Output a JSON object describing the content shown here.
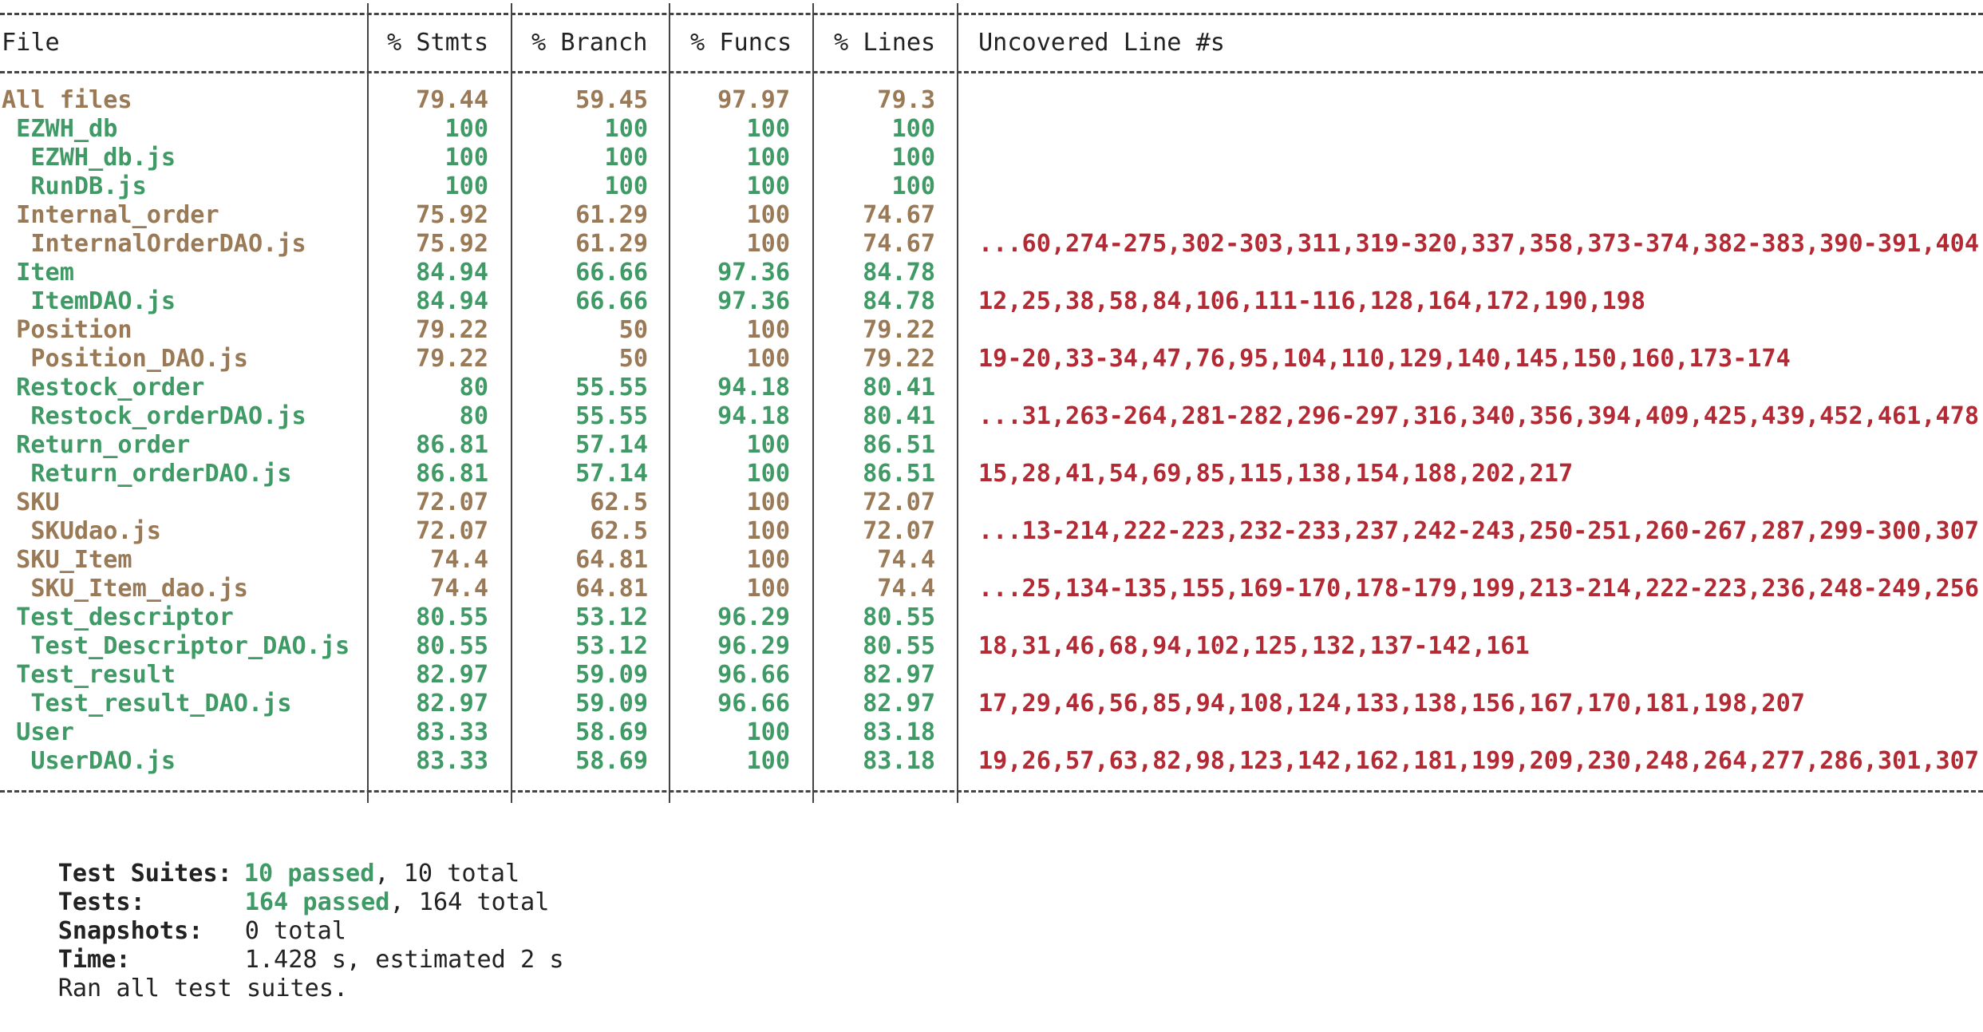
{
  "colors": {
    "ok": "#3f9a66",
    "warn": "#9a7a56",
    "uncovered": "#b32a35",
    "text": "#222222"
  },
  "table": {
    "headers": [
      "File",
      "% Stmts",
      "% Branch",
      "% Funcs",
      "% Lines",
      "Uncovered Line #s"
    ],
    "rows": [
      {
        "file": "All files",
        "stmts": "79.44",
        "branch": "59.45",
        "funcs": "97.97",
        "lines": "79.3",
        "uncovered": "",
        "status": "warn"
      },
      {
        "file": " EZWH_db",
        "stmts": "100",
        "branch": "100",
        "funcs": "100",
        "lines": "100",
        "uncovered": "",
        "status": "ok"
      },
      {
        "file": "  EZWH_db.js",
        "stmts": "100",
        "branch": "100",
        "funcs": "100",
        "lines": "100",
        "uncovered": "",
        "status": "ok"
      },
      {
        "file": "  RunDB.js",
        "stmts": "100",
        "branch": "100",
        "funcs": "100",
        "lines": "100",
        "uncovered": "",
        "status": "ok"
      },
      {
        "file": " Internal_order",
        "stmts": "75.92",
        "branch": "61.29",
        "funcs": "100",
        "lines": "74.67",
        "uncovered": "",
        "status": "warn"
      },
      {
        "file": "  InternalOrderDAO.js",
        "stmts": "75.92",
        "branch": "61.29",
        "funcs": "100",
        "lines": "74.67",
        "uncovered": "...60,274-275,302-303,311,319-320,337,358,373-374,382-383,390-391,404",
        "status": "warn"
      },
      {
        "file": " Item",
        "stmts": "84.94",
        "branch": "66.66",
        "funcs": "97.36",
        "lines": "84.78",
        "uncovered": "",
        "status": "ok"
      },
      {
        "file": "  ItemDAO.js",
        "stmts": "84.94",
        "branch": "66.66",
        "funcs": "97.36",
        "lines": "84.78",
        "uncovered": "12,25,38,58,84,106,111-116,128,164,172,190,198",
        "status": "ok"
      },
      {
        "file": " Position",
        "stmts": "79.22",
        "branch": "50",
        "funcs": "100",
        "lines": "79.22",
        "uncovered": "",
        "status": "warn"
      },
      {
        "file": "  Position_DAO.js",
        "stmts": "79.22",
        "branch": "50",
        "funcs": "100",
        "lines": "79.22",
        "uncovered": "19-20,33-34,47,76,95,104,110,129,140,145,150,160,173-174",
        "status": "warn"
      },
      {
        "file": " Restock_order",
        "stmts": "80",
        "branch": "55.55",
        "funcs": "94.18",
        "lines": "80.41",
        "uncovered": "",
        "status": "ok"
      },
      {
        "file": "  Restock_orderDAO.js",
        "stmts": "80",
        "branch": "55.55",
        "funcs": "94.18",
        "lines": "80.41",
        "uncovered": "...31,263-264,281-282,296-297,316,340,356,394,409,425,439,452,461,478",
        "status": "ok"
      },
      {
        "file": " Return_order",
        "stmts": "86.81",
        "branch": "57.14",
        "funcs": "100",
        "lines": "86.51",
        "uncovered": "",
        "status": "ok"
      },
      {
        "file": "  Return_orderDAO.js",
        "stmts": "86.81",
        "branch": "57.14",
        "funcs": "100",
        "lines": "86.51",
        "uncovered": "15,28,41,54,69,85,115,138,154,188,202,217",
        "status": "ok"
      },
      {
        "file": " SKU",
        "stmts": "72.07",
        "branch": "62.5",
        "funcs": "100",
        "lines": "72.07",
        "uncovered": "",
        "status": "warn"
      },
      {
        "file": "  SKUdao.js",
        "stmts": "72.07",
        "branch": "62.5",
        "funcs": "100",
        "lines": "72.07",
        "uncovered": "...13-214,222-223,232-233,237,242-243,250-251,260-267,287,299-300,307",
        "status": "warn"
      },
      {
        "file": " SKU_Item",
        "stmts": "74.4",
        "branch": "64.81",
        "funcs": "100",
        "lines": "74.4",
        "uncovered": "",
        "status": "warn"
      },
      {
        "file": "  SKU_Item_dao.js",
        "stmts": "74.4",
        "branch": "64.81",
        "funcs": "100",
        "lines": "74.4",
        "uncovered": "...25,134-135,155,169-170,178-179,199,213-214,222-223,236,248-249,256",
        "status": "warn"
      },
      {
        "file": " Test_descriptor",
        "stmts": "80.55",
        "branch": "53.12",
        "funcs": "96.29",
        "lines": "80.55",
        "uncovered": "",
        "status": "ok"
      },
      {
        "file": "  Test_Descriptor_DAO.js",
        "stmts": "80.55",
        "branch": "53.12",
        "funcs": "96.29",
        "lines": "80.55",
        "uncovered": "18,31,46,68,94,102,125,132,137-142,161",
        "status": "ok"
      },
      {
        "file": " Test_result",
        "stmts": "82.97",
        "branch": "59.09",
        "funcs": "96.66",
        "lines": "82.97",
        "uncovered": "",
        "status": "ok"
      },
      {
        "file": "  Test_result_DAO.js",
        "stmts": "82.97",
        "branch": "59.09",
        "funcs": "96.66",
        "lines": "82.97",
        "uncovered": "17,29,46,56,85,94,108,124,133,138,156,167,170,181,198,207",
        "status": "ok"
      },
      {
        "file": " User",
        "stmts": "83.33",
        "branch": "58.69",
        "funcs": "100",
        "lines": "83.18",
        "uncovered": "",
        "status": "ok"
      },
      {
        "file": "  UserDAO.js",
        "stmts": "83.33",
        "branch": "58.69",
        "funcs": "100",
        "lines": "83.18",
        "uncovered": "19,26,57,63,82,98,123,142,162,181,199,209,230,248,264,277,286,301,307",
        "status": "ok"
      }
    ]
  },
  "summary": {
    "suites_label": "Test Suites:",
    "suites_passed": "10 passed",
    "suites_total": ", 10 total",
    "tests_label": "Tests:",
    "tests_passed": "164 passed",
    "tests_total": ", 164 total",
    "snapshots_label": "Snapshots:",
    "snapshots_value": "0 total",
    "time_label": "Time:",
    "time_value": "1.428 s, estimated 2 s",
    "ran_all": "Ran all test suites."
  }
}
